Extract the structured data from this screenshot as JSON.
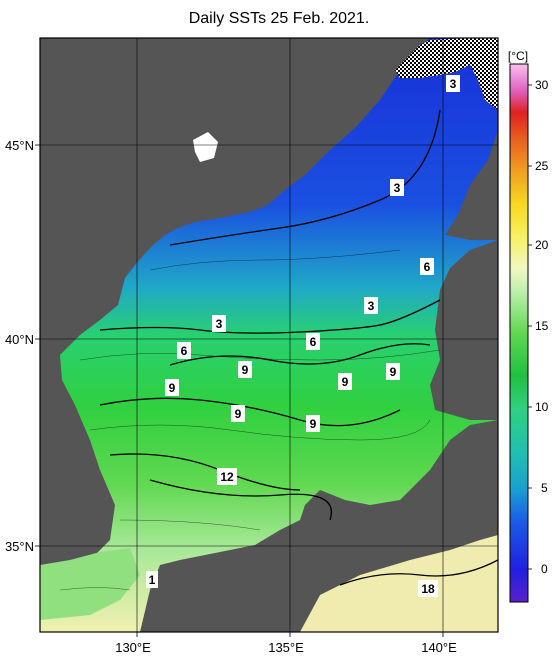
{
  "title": "Daily SSTs 25 Feb. 2021.",
  "colors": {
    "land": "#555555",
    "frame": "#000000",
    "grid": "#000000"
  },
  "axes": {
    "x_ticks": [
      "130°E",
      "135°E",
      "140°E"
    ],
    "y_ticks": [
      "45°N",
      "40°N",
      "35°N"
    ]
  },
  "colorbar": {
    "unit": "[°C]",
    "ticks": [
      "30",
      "25",
      "20",
      "15",
      "10",
      "5",
      "0"
    ],
    "range": [
      -2,
      31
    ]
  },
  "contour_labels": [
    {
      "text": "3"
    },
    {
      "text": "3"
    },
    {
      "text": "6"
    },
    {
      "text": "3"
    },
    {
      "text": "3"
    },
    {
      "text": "6"
    },
    {
      "text": "6"
    },
    {
      "text": "9"
    },
    {
      "text": "9"
    },
    {
      "text": "9"
    },
    {
      "text": "9"
    },
    {
      "text": "9"
    },
    {
      "text": "9"
    },
    {
      "text": "12"
    },
    {
      "text": "1"
    },
    {
      "text": "18"
    }
  ]
}
